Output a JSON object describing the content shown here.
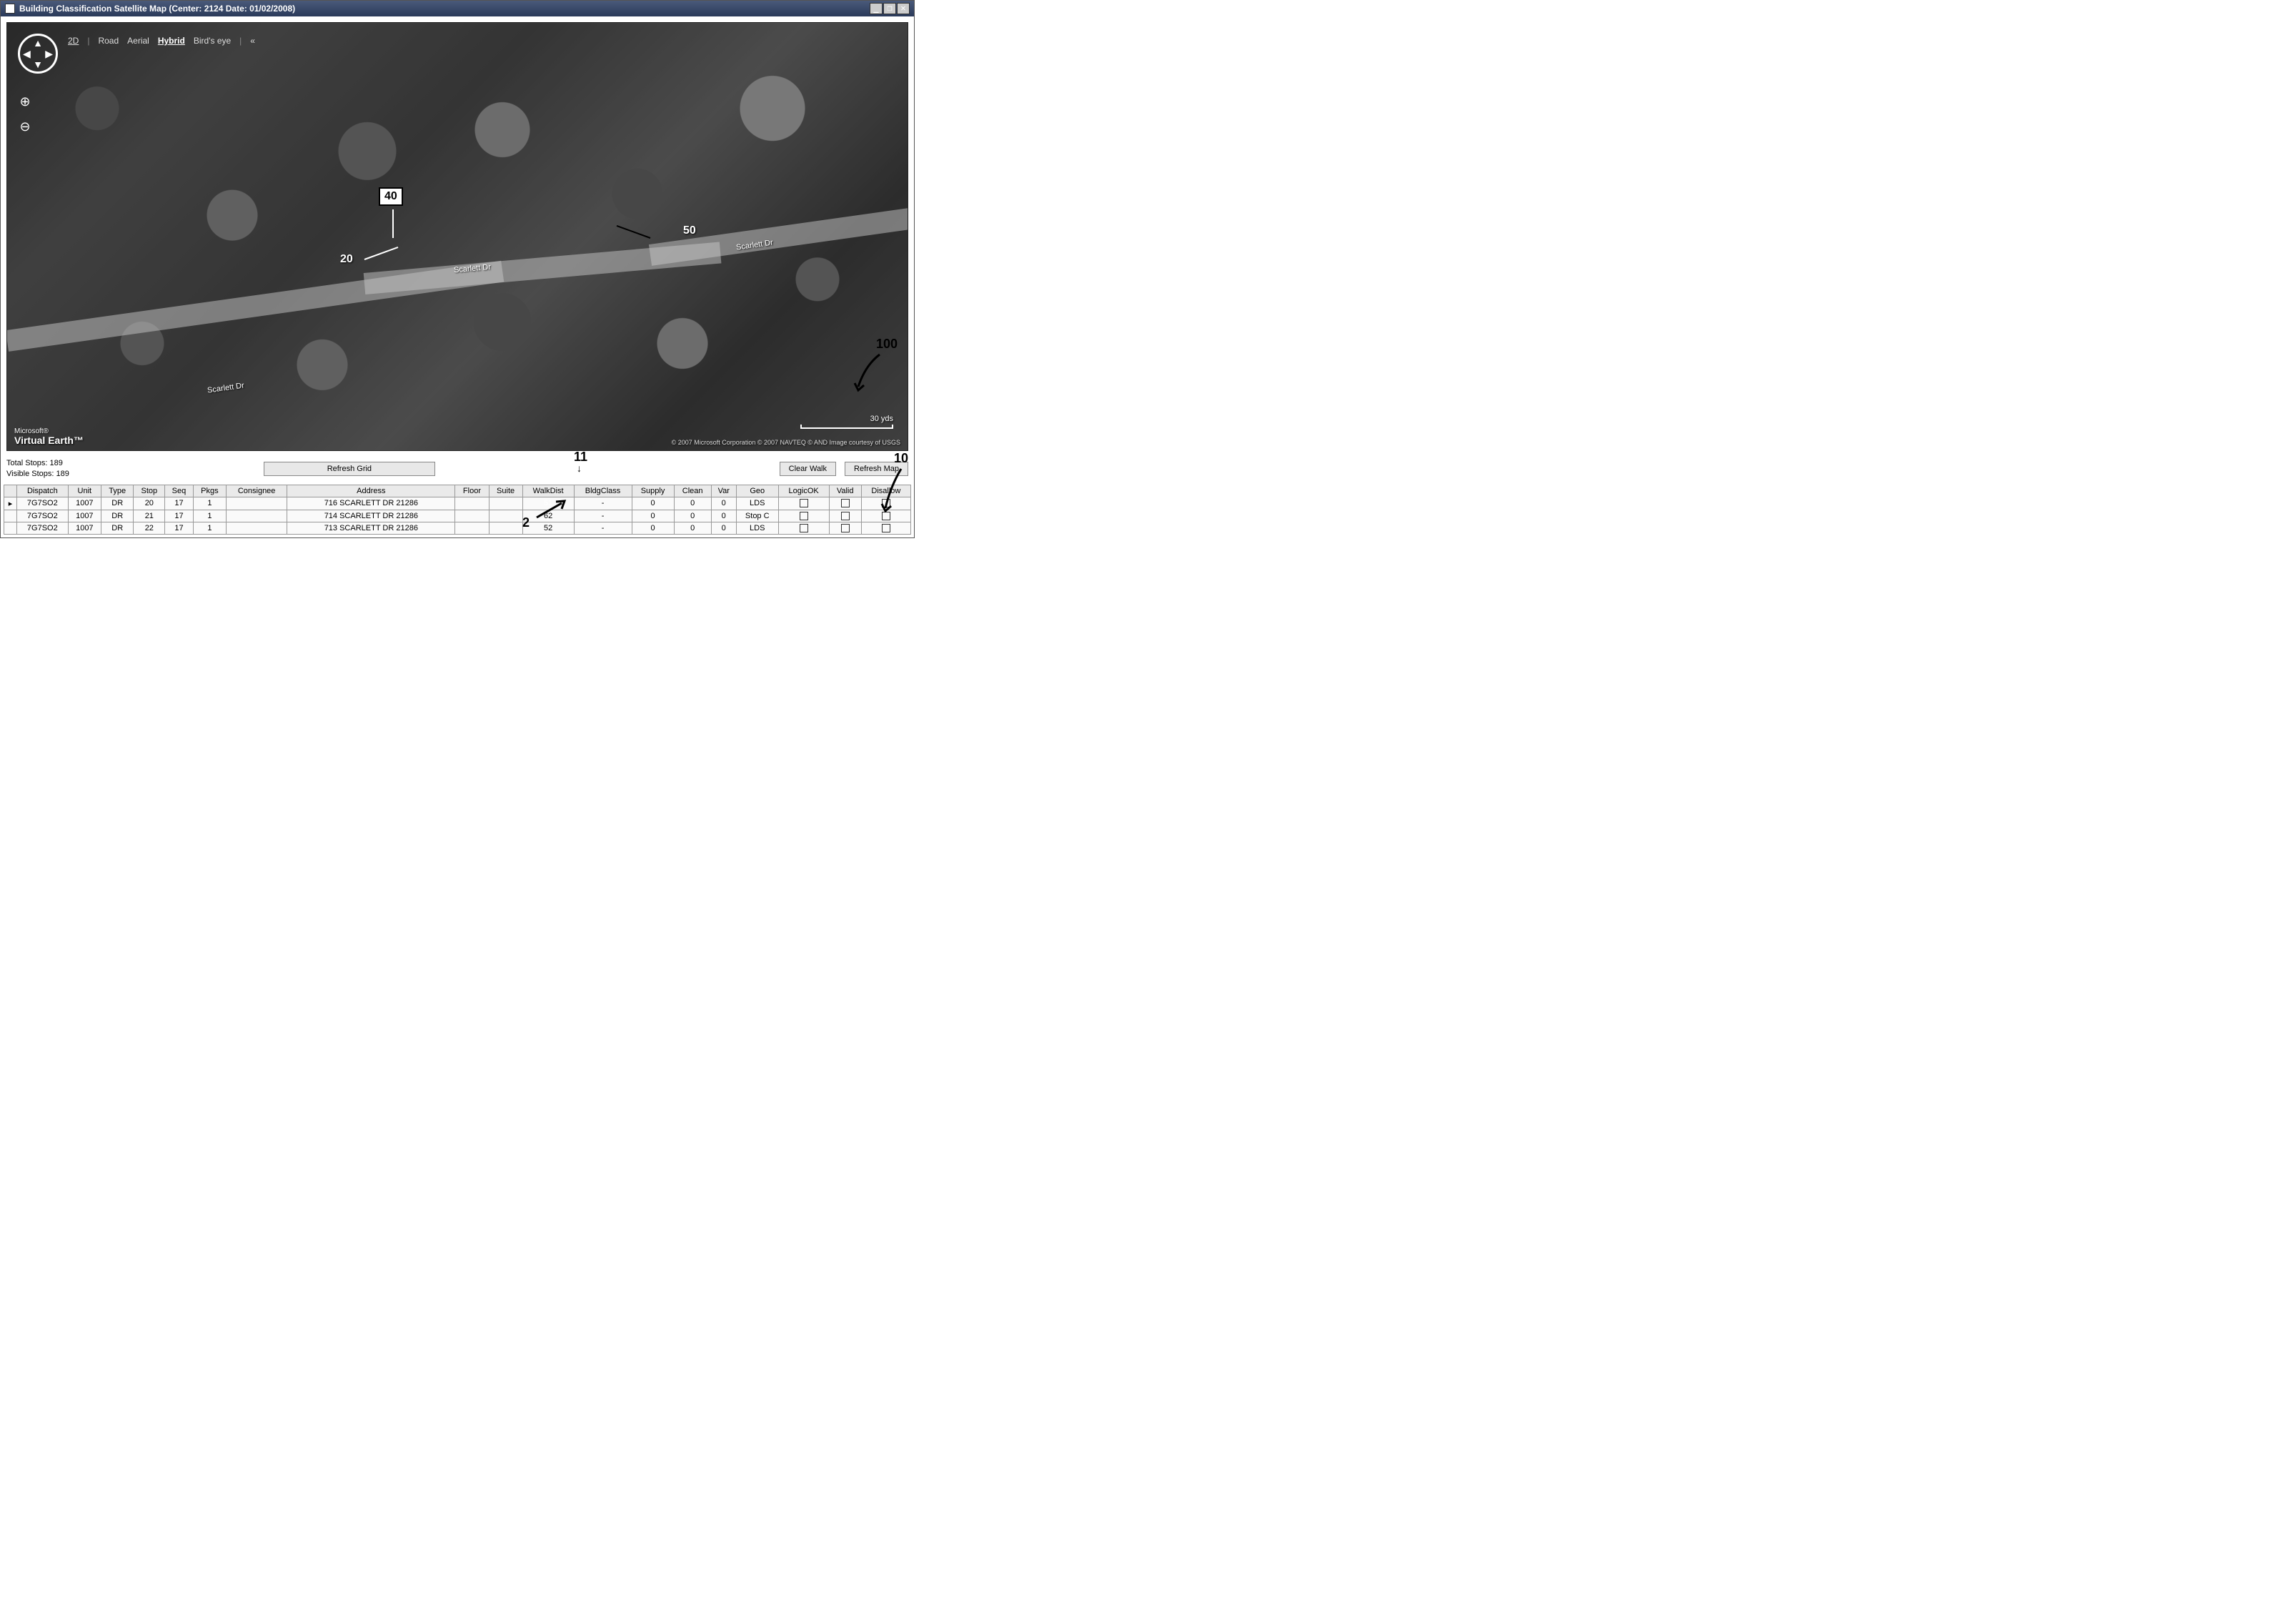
{
  "window": {
    "title": "Building Classification Satellite Map   (Center: 2124  Date: 01/02/2008)",
    "min": "_",
    "restore": "❐",
    "close": "✕"
  },
  "map": {
    "view_modes_prefix": "2D",
    "view_modes": [
      "Road",
      "Aerial",
      "Hybrid",
      "Bird's eye"
    ],
    "active_mode": "Hybrid",
    "collapse": "«",
    "road_name": "Scarlett Dr",
    "scale_label": "30 yds",
    "attribution": "© 2007 Microsoft Corporation   © 2007 NAVTEQ   © AND   Image courtesy of USGS",
    "logo_small": "Microsoft®",
    "logo_big": "Virtual Earth™"
  },
  "callouts": {
    "c40": "40",
    "c20": "20",
    "c50": "50",
    "c100": "100",
    "c10": "10",
    "c11": "11",
    "c2": "2"
  },
  "status": {
    "total_label": "Total Stops:",
    "total_value": "189",
    "visible_label": "Visible Stops:",
    "visible_value": "189",
    "refresh_grid": "Refresh Grid",
    "clear_walk": "Clear Walk",
    "refresh_map": "Refresh Map"
  },
  "grid": {
    "columns": [
      "Dispatch",
      "Unit",
      "Type",
      "Stop",
      "Seq",
      "Pkgs",
      "Consignee",
      "Address",
      "Floor",
      "Suite",
      "WalkDist",
      "BldgClass",
      "Supply",
      "Clean",
      "Var",
      "Geo",
      "LogicOK",
      "Valid",
      "Disallow"
    ],
    "rows": [
      {
        "dispatch": "7G7SO2",
        "unit": "1007",
        "type": "DR",
        "stop": "20",
        "seq": "17",
        "pkgs": "1",
        "consignee": "",
        "address": "716 SCARLETT DR 21286",
        "floor": "",
        "suite": "",
        "walkdist": "51",
        "walkdist_selected": true,
        "bldgclass": "-",
        "supply": "0",
        "clean": "0",
        "var": "0",
        "geo": "LDS"
      },
      {
        "dispatch": "7G7SO2",
        "unit": "1007",
        "type": "DR",
        "stop": "21",
        "seq": "17",
        "pkgs": "1",
        "consignee": "",
        "address": "714 SCARLETT DR 21286",
        "floor": "",
        "suite": "",
        "walkdist": "62",
        "walkdist_selected": false,
        "bldgclass": "-",
        "supply": "0",
        "clean": "0",
        "var": "0",
        "geo": "Stop C"
      },
      {
        "dispatch": "7G7SO2",
        "unit": "1007",
        "type": "DR",
        "stop": "22",
        "seq": "17",
        "pkgs": "1",
        "consignee": "",
        "address": "713 SCARLETT DR 21286",
        "floor": "",
        "suite": "",
        "walkdist": "52",
        "walkdist_selected": false,
        "bldgclass": "-",
        "supply": "0",
        "clean": "0",
        "var": "0",
        "geo": "LDS"
      }
    ]
  }
}
